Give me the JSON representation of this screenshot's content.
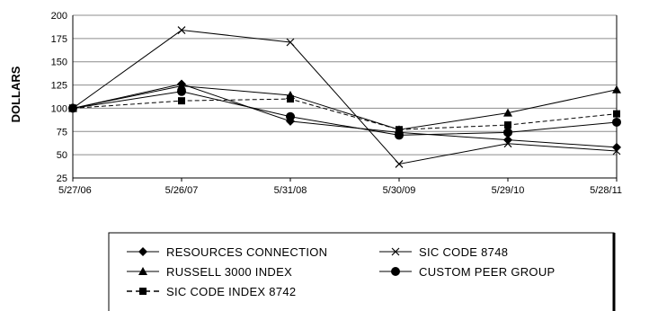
{
  "chart_data": {
    "type": "line",
    "title": "",
    "xlabel": "",
    "ylabel": "DOLLARS",
    "ylim": [
      25,
      200
    ],
    "yticks": [
      25,
      50,
      75,
      100,
      125,
      150,
      175,
      200
    ],
    "grid": "horizontal",
    "legend_position": "bottom",
    "categories": [
      "5/27/06",
      "5/26/07",
      "5/31/08",
      "5/30/09",
      "5/29/10",
      "5/28/11"
    ],
    "series": [
      {
        "name": "RESOURCES CONNECTION",
        "marker": "diamond",
        "dash": "solid",
        "color": "#000000",
        "values": [
          100,
          126,
          86,
          74,
          66,
          58
        ]
      },
      {
        "name": "RUSSELL 3000 INDEX",
        "marker": "triangle",
        "dash": "solid",
        "color": "#000000",
        "values": [
          100,
          124,
          114,
          77,
          95,
          120
        ]
      },
      {
        "name": "SIC CODE INDEX 8742",
        "marker": "square",
        "dash": "dashed",
        "color": "#000000",
        "values": [
          100,
          108,
          110,
          77,
          82,
          94
        ]
      },
      {
        "name": "SIC CODE 8748",
        "marker": "x",
        "dash": "solid",
        "color": "#000000",
        "values": [
          100,
          184,
          171,
          40,
          62,
          54
        ]
      },
      {
        "name": "CUSTOM PEER GROUP",
        "marker": "circle",
        "dash": "solid",
        "color": "#000000",
        "values": [
          100,
          118,
          91,
          71,
          74,
          85
        ]
      }
    ]
  }
}
